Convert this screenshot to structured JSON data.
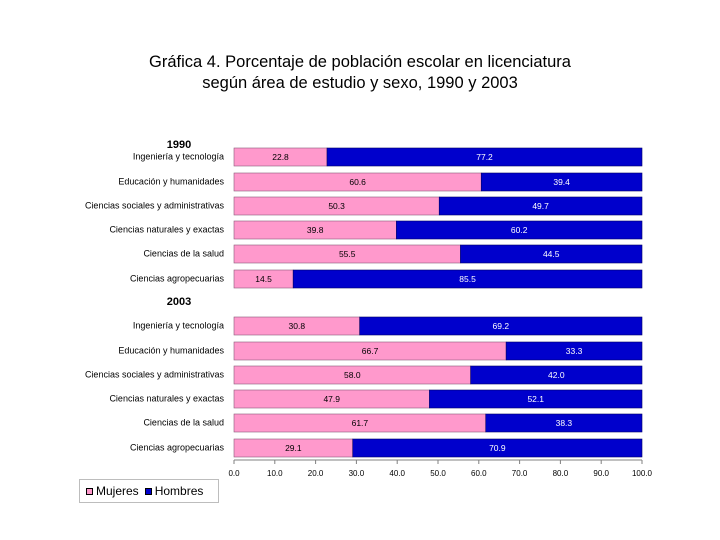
{
  "title": {
    "line1": "Gráfica 4. Porcentaje de población escolar en licenciatura",
    "line2": "según área de estudio y sexo, 1990 y 2003"
  },
  "chart_data": {
    "type": "bar",
    "orientation": "horizontal",
    "stacked": true,
    "xlim": [
      0,
      100
    ],
    "xticks": [
      "0.0",
      "10.0",
      "20.0",
      "30.0",
      "40.0",
      "50.0",
      "60.0",
      "70.0",
      "80.0",
      "90.0",
      "100.0"
    ],
    "legend": [
      {
        "name": "Mujeres",
        "color": "#ff99cc"
      },
      {
        "name": "Hombres",
        "color": "#0000cc"
      }
    ],
    "groups": [
      {
        "label": "1990",
        "categories": [
          "Ingeniería y tecnología",
          "Educación y humanidades",
          "Ciencias sociales y administrativas",
          "Ciencias naturales y exactas",
          "Ciencias de la salud",
          "Ciencias agropecuarias"
        ],
        "mujeres": [
          22.8,
          60.6,
          50.3,
          39.8,
          55.5,
          14.5
        ],
        "hombres": [
          77.2,
          39.4,
          49.7,
          60.2,
          44.5,
          85.5
        ],
        "mujeres_labels": [
          "22.8",
          "60.6",
          "50.3",
          "39.8",
          "55.5",
          "14.5"
        ],
        "hombres_labels": [
          "77.2",
          "39.4",
          "49.7",
          "60.2",
          "44.5",
          "85.5"
        ]
      },
      {
        "label": "2003",
        "categories": [
          "Ingeniería y tecnología",
          "Educación y humanidades",
          "Ciencias sociales y administrativas",
          "Ciencias naturales y exactas",
          "Ciencias de la salud",
          "Ciencias agropecuarias"
        ],
        "mujeres": [
          30.8,
          66.7,
          58.0,
          47.9,
          61.7,
          29.1
        ],
        "hombres": [
          69.2,
          33.3,
          42.0,
          52.1,
          38.3,
          70.9
        ],
        "mujeres_labels": [
          "30.8",
          "66.7",
          "58.0",
          "47.9",
          "61.7",
          "29.1"
        ],
        "hombres_labels": [
          "69.2",
          "33.3",
          "42.0",
          "52.1",
          "38.3",
          "70.9"
        ]
      }
    ]
  }
}
